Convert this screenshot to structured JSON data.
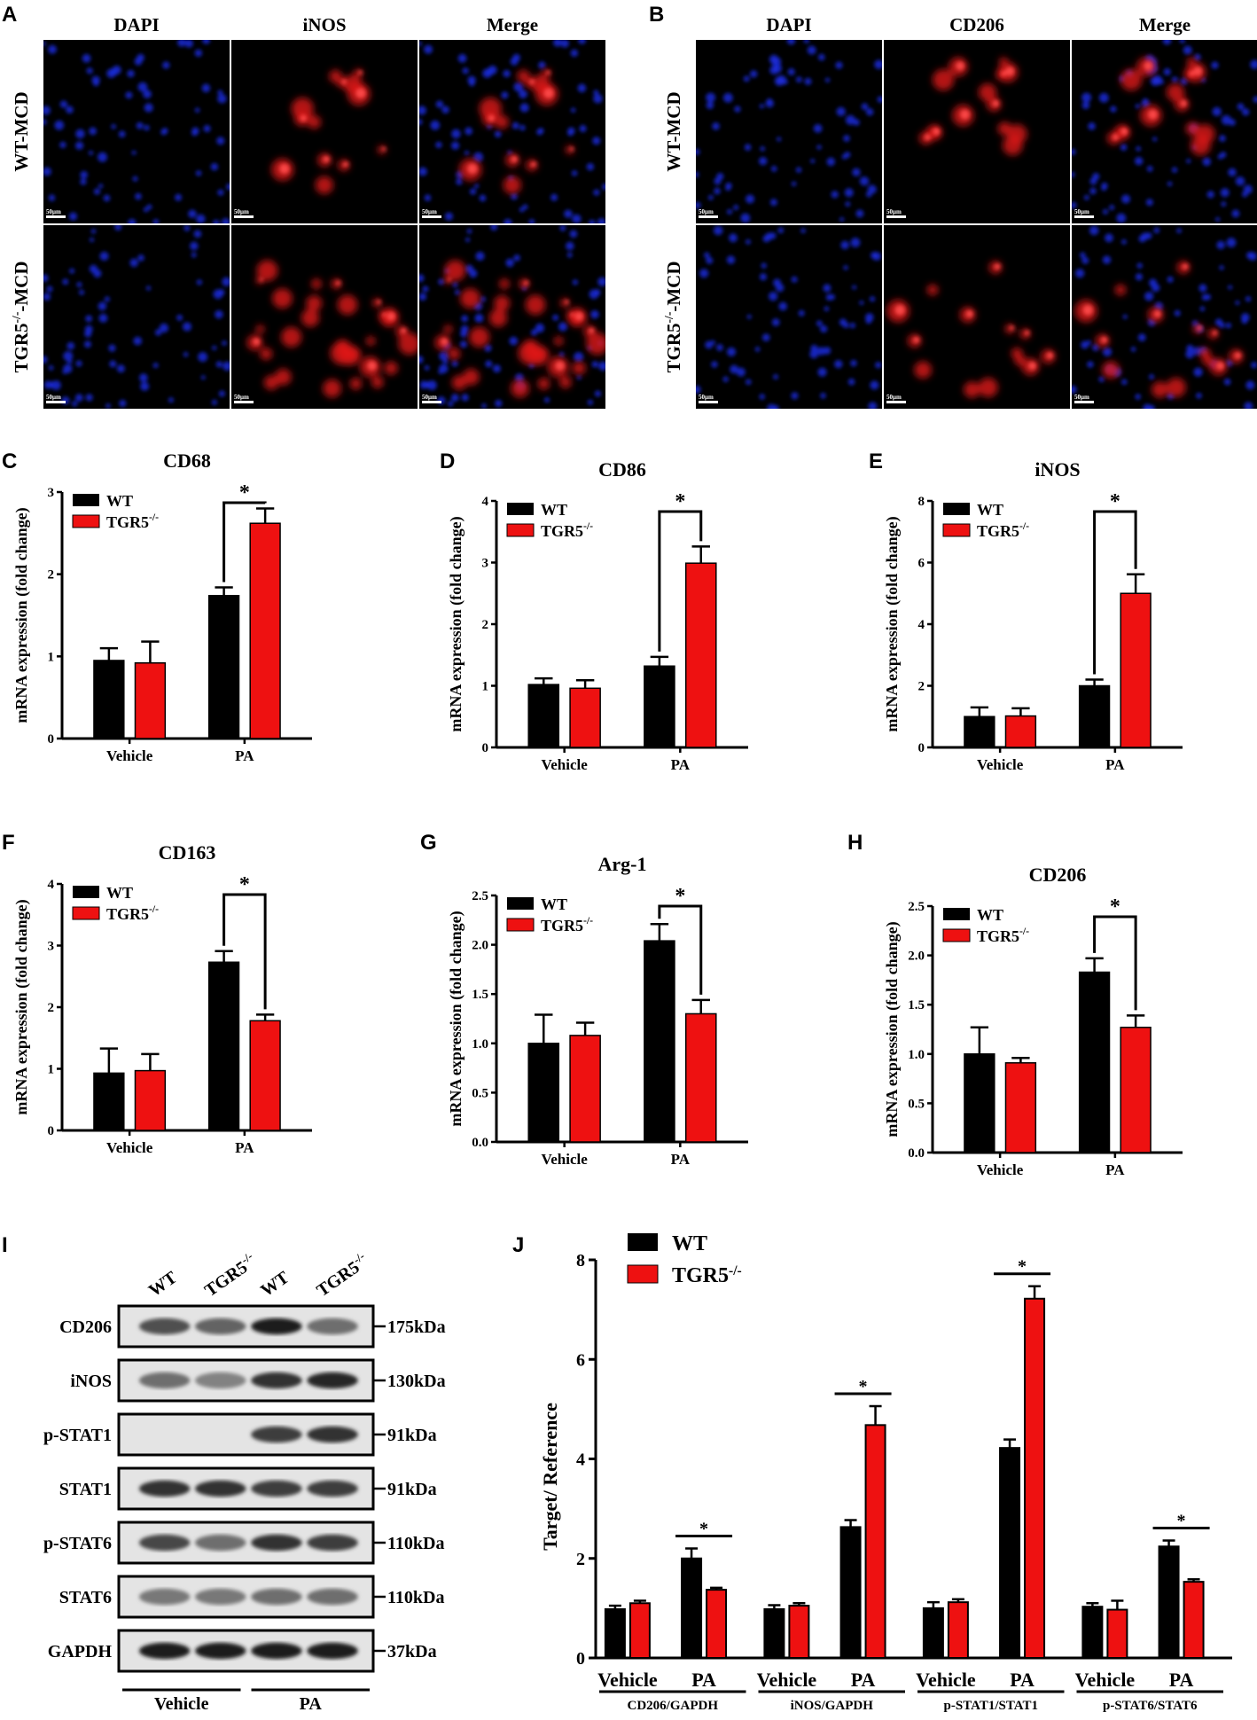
{
  "panel_letters": [
    "A",
    "B",
    "C",
    "D",
    "E",
    "F",
    "G",
    "H",
    "I",
    "J"
  ],
  "microscopy": {
    "A": {
      "columns": [
        "DAPI",
        "iNOS",
        "Merge"
      ],
      "rows": [
        {
          "main": "WT-MCD",
          "sup": ""
        },
        {
          "main": "TGR5",
          "sup": "-/-",
          "suffix": "-MCD"
        }
      ],
      "scale_bar": "50μm"
    },
    "B": {
      "columns": [
        "DAPI",
        "CD206",
        "Merge"
      ],
      "rows": [
        {
          "main": "WT-MCD",
          "sup": ""
        },
        {
          "main": "TGR5",
          "sup": "-/-",
          "suffix": "-MCD"
        }
      ],
      "scale_bar": "50μm"
    }
  },
  "legend": {
    "wt": "WT",
    "ko": "TGR5",
    "ko_sup": "-/-"
  },
  "colors": {
    "wt": "#000000",
    "ko": "#ee1111",
    "dapi": "#1a2ad8",
    "red_stain": "#e01515"
  },
  "chart_data": [
    {
      "id": "C",
      "type": "bar",
      "title": "CD68",
      "ylabel": "mRNA expression (fold change)",
      "categories": [
        "Vehicle",
        "PA"
      ],
      "ylim": [
        0,
        3
      ],
      "yticks": [
        "0",
        "1",
        "2",
        "3"
      ],
      "series": [
        {
          "name": "WT",
          "values": [
            0.95,
            1.74
          ],
          "errors": [
            0.15,
            0.1
          ]
        },
        {
          "name": "TGR5-/-",
          "values": [
            0.92,
            2.62
          ],
          "errors": [
            0.26,
            0.18
          ]
        }
      ],
      "significance": [
        {
          "category": "PA",
          "label": "*"
        }
      ]
    },
    {
      "id": "D",
      "type": "bar",
      "title": "CD86",
      "ylabel": "mRNA expression (fold change)",
      "categories": [
        "Vehicle",
        "PA"
      ],
      "ylim": [
        0,
        4
      ],
      "yticks": [
        "0",
        "1",
        "2",
        "3",
        "4"
      ],
      "series": [
        {
          "name": "WT",
          "values": [
            1.02,
            1.32
          ],
          "errors": [
            0.1,
            0.15
          ]
        },
        {
          "name": "TGR5-/-",
          "values": [
            0.96,
            2.99
          ],
          "errors": [
            0.13,
            0.27
          ]
        }
      ],
      "significance": [
        {
          "category": "PA",
          "label": "*"
        }
      ]
    },
    {
      "id": "E",
      "type": "bar",
      "title": "iNOS",
      "ylabel": "mRNA expression (fold change)",
      "categories": [
        "Vehicle",
        "PA"
      ],
      "ylim": [
        0,
        8
      ],
      "yticks": [
        "0",
        "2",
        "4",
        "6",
        "8"
      ],
      "series": [
        {
          "name": "WT",
          "values": [
            1.0,
            2.0
          ],
          "errors": [
            0.3,
            0.2
          ]
        },
        {
          "name": "TGR5-/-",
          "values": [
            1.02,
            5.0
          ],
          "errors": [
            0.25,
            0.62
          ]
        }
      ],
      "significance": [
        {
          "category": "PA",
          "label": "*"
        }
      ]
    },
    {
      "id": "F",
      "type": "bar",
      "title": "CD163",
      "ylabel": "mRNA expression (fold change)",
      "categories": [
        "Vehicle",
        "PA"
      ],
      "ylim": [
        0,
        4
      ],
      "yticks": [
        "0",
        "1",
        "2",
        "3",
        "4"
      ],
      "series": [
        {
          "name": "WT",
          "values": [
            0.93,
            2.73
          ],
          "errors": [
            0.4,
            0.18
          ]
        },
        {
          "name": "TGR5-/-",
          "values": [
            0.97,
            1.78
          ],
          "errors": [
            0.27,
            0.1
          ]
        }
      ],
      "significance": [
        {
          "category": "PA",
          "label": "*"
        }
      ]
    },
    {
      "id": "G",
      "type": "bar",
      "title": "Arg-1",
      "ylabel": "mRNA expression (fold change)",
      "categories": [
        "Vehicle",
        "PA"
      ],
      "ylim": [
        0,
        2.5
      ],
      "yticks": [
        "0.0",
        "0.5",
        "1.0",
        "1.5",
        "2.0",
        "2.5"
      ],
      "series": [
        {
          "name": "WT",
          "values": [
            1.0,
            2.04
          ],
          "errors": [
            0.29,
            0.17
          ]
        },
        {
          "name": "TGR5-/-",
          "values": [
            1.08,
            1.3
          ],
          "errors": [
            0.13,
            0.14
          ]
        }
      ],
      "significance": [
        {
          "category": "PA",
          "label": "*"
        }
      ]
    },
    {
      "id": "H",
      "type": "bar",
      "title": "CD206",
      "ylabel": "mRNA expression (fold change)",
      "categories": [
        "Vehicle",
        "PA"
      ],
      "ylim": [
        0,
        2.5
      ],
      "yticks": [
        "0.0",
        "0.5",
        "1.0",
        "1.5",
        "2.0",
        "2.5"
      ],
      "series": [
        {
          "name": "WT",
          "values": [
            1.0,
            1.83
          ],
          "errors": [
            0.27,
            0.14
          ]
        },
        {
          "name": "TGR5-/-",
          "values": [
            0.91,
            1.27
          ],
          "errors": [
            0.05,
            0.12
          ]
        }
      ],
      "significance": [
        {
          "category": "PA",
          "label": "*"
        }
      ]
    },
    {
      "id": "J",
      "type": "bar",
      "ylabel": "Target/ Reference",
      "ylim": [
        0,
        8
      ],
      "yticks": [
        "0",
        "2",
        "4",
        "6",
        "8"
      ],
      "groups": [
        "CD206/GAPDH",
        "iNOS/GAPDH",
        "p-STAT1/STAT1",
        "p-STAT6/STAT6"
      ],
      "subcategories": [
        "Vehicle",
        "PA"
      ],
      "series": [
        {
          "name": "WT",
          "values": [
            [
              0.98,
              2.0
            ],
            [
              0.98,
              2.63
            ],
            [
              1.0,
              4.22
            ],
            [
              1.03,
              2.24
            ]
          ],
          "errors": [
            [
              0.07,
              0.2
            ],
            [
              0.08,
              0.14
            ],
            [
              0.12,
              0.17
            ],
            [
              0.07,
              0.12
            ]
          ]
        },
        {
          "name": "TGR5-/-",
          "values": [
            [
              1.1,
              1.37
            ],
            [
              1.05,
              4.68
            ],
            [
              1.12,
              7.22
            ],
            [
              0.97,
              1.53
            ]
          ],
          "errors": [
            [
              0.05,
              0.04
            ],
            [
              0.05,
              0.38
            ],
            [
              0.06,
              0.25
            ],
            [
              0.18,
              0.05
            ]
          ]
        }
      ],
      "significance": [
        {
          "group": 0,
          "label": "*"
        },
        {
          "group": 1,
          "label": "*"
        },
        {
          "group": 2,
          "label": "*"
        },
        {
          "group": 3,
          "label": "*"
        }
      ]
    }
  ],
  "western_blot": {
    "lane_labels": [
      {
        "main": "WT",
        "sup": ""
      },
      {
        "main": "TGR5",
        "sup": "-/-"
      },
      {
        "main": "WT",
        "sup": ""
      },
      {
        "main": "TGR5",
        "sup": "-/-"
      }
    ],
    "bands": [
      {
        "protein": "CD206",
        "mw": "175kDa",
        "intensity": [
          0.7,
          0.6,
          0.95,
          0.55
        ]
      },
      {
        "protein": "iNOS",
        "mw": "130kDa",
        "intensity": [
          0.55,
          0.45,
          0.85,
          0.9
        ]
      },
      {
        "protein": "p-STAT1",
        "mw": "91kDa",
        "intensity": [
          0.02,
          0.02,
          0.8,
          0.85
        ]
      },
      {
        "protein": "STAT1",
        "mw": "91kDa",
        "intensity": [
          0.85,
          0.85,
          0.8,
          0.8
        ]
      },
      {
        "protein": "p-STAT6",
        "mw": "110kDa",
        "intensity": [
          0.75,
          0.55,
          0.85,
          0.8
        ]
      },
      {
        "protein": "STAT6",
        "mw": "110kDa",
        "intensity": [
          0.5,
          0.5,
          0.55,
          0.55
        ]
      },
      {
        "protein": "GAPDH",
        "mw": "37kDa",
        "intensity": [
          0.95,
          0.95,
          0.95,
          0.95
        ]
      }
    ],
    "groups": [
      "Vehicle",
      "PA"
    ]
  }
}
